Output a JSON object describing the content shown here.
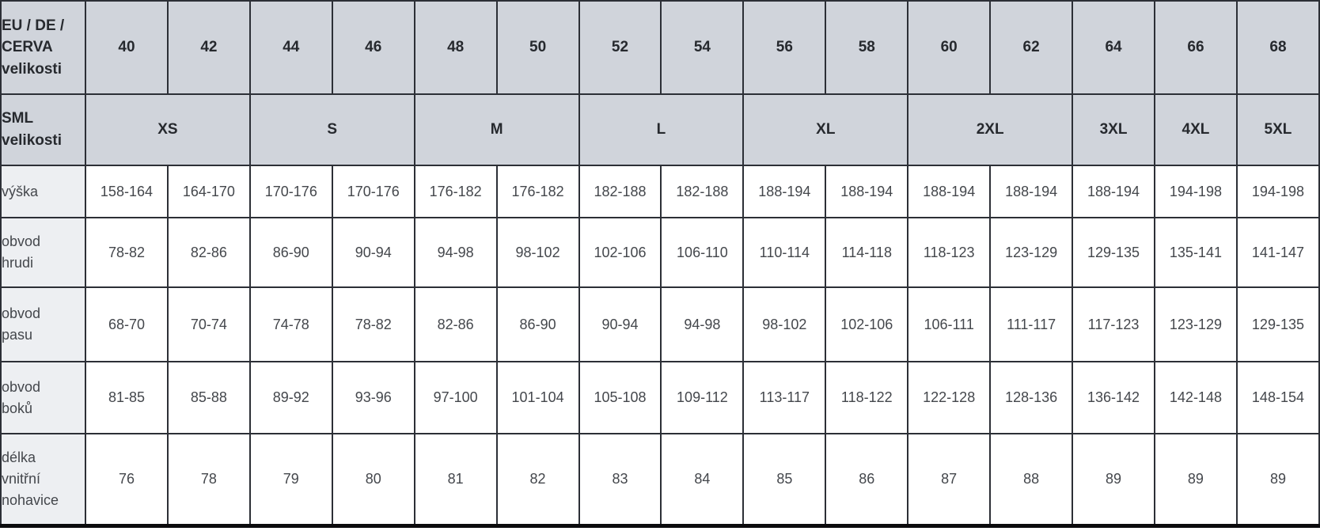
{
  "table": {
    "eu_row": {
      "label": "EU / DE /\nCERVA\nvelikosti",
      "sizes": [
        "40",
        "42",
        "44",
        "46",
        "48",
        "50",
        "52",
        "54",
        "56",
        "58",
        "60",
        "62",
        "64",
        "66",
        "68"
      ]
    },
    "sml_row": {
      "label": "SML\nvelikosti",
      "groups": [
        {
          "label": "XS",
          "span": 2
        },
        {
          "label": "S",
          "span": 2
        },
        {
          "label": "M",
          "span": 2
        },
        {
          "label": "L",
          "span": 2
        },
        {
          "label": "XL",
          "span": 2
        },
        {
          "label": "2XL",
          "span": 2
        },
        {
          "label": "3XL",
          "span": 1
        },
        {
          "label": "4XL",
          "span": 1
        },
        {
          "label": "5XL",
          "span": 1
        }
      ]
    },
    "rows": [
      {
        "label": "výška",
        "values": [
          "158-164",
          "164-170",
          "170-176",
          "170-176",
          "176-182",
          "176-182",
          "182-188",
          "182-188",
          "188-194",
          "188-194",
          "188-194",
          "188-194",
          "188-194",
          "194-198",
          "194-198"
        ]
      },
      {
        "label": "obvod\nhrudi",
        "values": [
          "78-82",
          "82-86",
          "86-90",
          "90-94",
          "94-98",
          "98-102",
          "102-106",
          "106-110",
          "110-114",
          "114-118",
          "118-123",
          "123-129",
          "129-135",
          "135-141",
          "141-147"
        ]
      },
      {
        "label": "obvod\npasu",
        "values": [
          "68-70",
          "70-74",
          "74-78",
          "78-82",
          "82-86",
          "86-90",
          "90-94",
          "94-98",
          "98-102",
          "102-106",
          "106-111",
          "111-117",
          "117-123",
          "123-129",
          "129-135"
        ]
      },
      {
        "label": "obvod\nboků",
        "values": [
          "81-85",
          "85-88",
          "89-92",
          "93-96",
          "97-100",
          "101-104",
          "105-108",
          "109-112",
          "113-117",
          "118-122",
          "122-128",
          "128-136",
          "136-142",
          "142-148",
          "148-154"
        ]
      },
      {
        "label": "délka\nvnitřní\nnohavice",
        "values": [
          "76",
          "78",
          "79",
          "80",
          "81",
          "82",
          "83",
          "84",
          "85",
          "86",
          "87",
          "88",
          "89",
          "89",
          "89"
        ]
      }
    ],
    "colors": {
      "header_bg": "#d0d4db",
      "label_bg": "#edeff2",
      "cell_bg": "#ffffff",
      "border": "#2c2f36",
      "bottom_border": "#0b0b0d",
      "header_text": "#26292e",
      "body_text": "#44474c"
    }
  }
}
